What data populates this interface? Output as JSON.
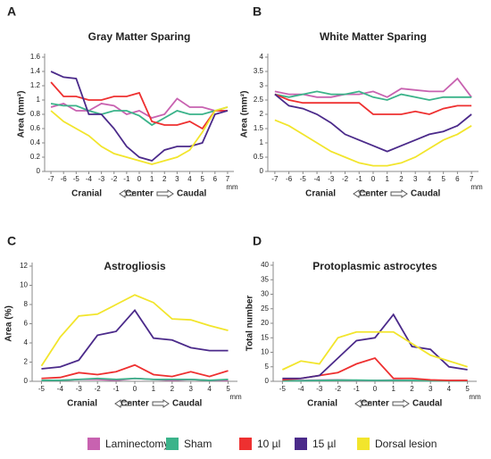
{
  "chart_data": [
    {
      "type": "line",
      "letter": "A",
      "title": "Gray Matter Sparing",
      "ylabel": "Area (mm²)",
      "xlabel": "mm",
      "notes": [
        "Cranial",
        "Center",
        "Caudal"
      ],
      "x": [
        -7,
        -6,
        -5,
        -4,
        -3,
        -2,
        -1,
        0,
        1,
        2,
        3,
        4,
        5,
        6,
        7
      ],
      "xlim": [
        -7.5,
        7.5
      ],
      "xticks": [
        -7,
        -6,
        -5,
        -4,
        -3,
        -2,
        -1,
        0,
        1,
        2,
        3,
        4,
        5,
        6,
        7
      ],
      "ylim": [
        0,
        1.6
      ],
      "yticks": [
        0,
        0.2,
        0.4,
        0.6,
        0.8,
        1,
        1.2,
        1.4,
        1.6
      ],
      "series": [
        {
          "name": "Laminectomy",
          "color": "#c862b0",
          "values": [
            0.9,
            0.95,
            0.85,
            0.85,
            0.95,
            0.92,
            0.8,
            0.85,
            0.75,
            0.8,
            1.02,
            0.9,
            0.9,
            0.85,
            0.85
          ]
        },
        {
          "name": "Sham",
          "color": "#3bb38a",
          "values": [
            0.95,
            0.92,
            0.92,
            0.85,
            0.8,
            0.85,
            0.85,
            0.78,
            0.65,
            0.75,
            0.85,
            0.8,
            0.8,
            0.85,
            0.9
          ]
        },
        {
          "name": "10 µl",
          "color": "#ee3030",
          "values": [
            1.25,
            1.05,
            1.05,
            1.0,
            1.0,
            1.05,
            1.05,
            1.1,
            0.7,
            0.65,
            0.65,
            0.7,
            0.6,
            0.85,
            0.85
          ]
        },
        {
          "name": "15 µl",
          "color": "#4b2a8a",
          "values": [
            1.4,
            1.32,
            1.3,
            0.8,
            0.8,
            0.6,
            0.35,
            0.2,
            0.15,
            0.3,
            0.35,
            0.35,
            0.4,
            0.8,
            0.85
          ]
        },
        {
          "name": "Dorsal lesion",
          "color": "#f2e52c",
          "values": [
            0.85,
            0.7,
            0.6,
            0.5,
            0.35,
            0.25,
            0.2,
            0.15,
            0.1,
            0.15,
            0.2,
            0.3,
            0.55,
            0.85,
            0.9
          ]
        }
      ]
    },
    {
      "type": "line",
      "letter": "B",
      "title": "White Matter Sparing",
      "ylabel": "Area (mm²)",
      "xlabel": "mm",
      "notes": [
        "Cranial",
        "Center",
        "Caudal"
      ],
      "x": [
        -7,
        -6,
        -5,
        -4,
        -3,
        -2,
        -1,
        0,
        1,
        2,
        3,
        4,
        5,
        6,
        7
      ],
      "xlim": [
        -7.5,
        7.5
      ],
      "xticks": [
        -7,
        -6,
        -5,
        -4,
        -3,
        -2,
        -1,
        0,
        1,
        2,
        3,
        4,
        5,
        6,
        7
      ],
      "ylim": [
        0,
        4
      ],
      "yticks": [
        0,
        0.5,
        1,
        1.5,
        2,
        2.5,
        3,
        3.5,
        4
      ],
      "series": [
        {
          "name": "Laminectomy",
          "color": "#c862b0",
          "values": [
            2.8,
            2.7,
            2.7,
            2.6,
            2.6,
            2.7,
            2.7,
            2.8,
            2.6,
            2.9,
            2.85,
            2.8,
            2.8,
            3.25,
            2.6
          ]
        },
        {
          "name": "Sham",
          "color": "#3bb38a",
          "values": [
            2.7,
            2.6,
            2.7,
            2.8,
            2.7,
            2.7,
            2.8,
            2.6,
            2.5,
            2.7,
            2.6,
            2.5,
            2.6,
            2.6,
            2.6
          ]
        },
        {
          "name": "10 µl",
          "color": "#ee3030",
          "values": [
            2.7,
            2.5,
            2.4,
            2.4,
            2.4,
            2.4,
            2.4,
            2.0,
            2.0,
            2.0,
            2.1,
            2.0,
            2.2,
            2.3,
            2.3
          ]
        },
        {
          "name": "15 µl",
          "color": "#4b2a8a",
          "values": [
            2.7,
            2.3,
            2.2,
            2.0,
            1.7,
            1.3,
            1.1,
            0.9,
            0.7,
            0.9,
            1.1,
            1.3,
            1.4,
            1.6,
            2.0
          ]
        },
        {
          "name": "Dorsal lesion",
          "color": "#f2e52c",
          "values": [
            1.8,
            1.6,
            1.3,
            1.0,
            0.7,
            0.5,
            0.3,
            0.2,
            0.2,
            0.3,
            0.5,
            0.8,
            1.1,
            1.3,
            1.6
          ]
        }
      ]
    },
    {
      "type": "line",
      "letter": "C",
      "title": "Astrogliosis",
      "ylabel": "Area (%)",
      "xlabel": "mm",
      "notes": [
        "Cranial",
        "Center",
        "Caudal"
      ],
      "x": [
        -5,
        -4,
        -3,
        -2,
        -1,
        0,
        1,
        2,
        3,
        4,
        5
      ],
      "xlim": [
        -5.5,
        5.5
      ],
      "xticks": [
        -5,
        -4,
        -3,
        -2,
        -1,
        0,
        1,
        2,
        3,
        4,
        5
      ],
      "ylim": [
        0,
        12
      ],
      "yticks": [
        0,
        2,
        4,
        6,
        8,
        10,
        12
      ],
      "series": [
        {
          "name": "Laminectomy",
          "color": "#c862b0",
          "values": [
            0.1,
            0.1,
            0.2,
            0.2,
            0.1,
            0.3,
            0.2,
            0.1,
            0.2,
            0.1,
            0.1
          ]
        },
        {
          "name": "Sham",
          "color": "#3bb38a",
          "values": [
            0.1,
            0.1,
            0.2,
            0.3,
            0.2,
            0.3,
            0.2,
            0.2,
            0.2,
            0.1,
            0.2
          ]
        },
        {
          "name": "10 µl",
          "color": "#ee3030",
          "values": [
            0.3,
            0.4,
            0.9,
            0.7,
            1.0,
            1.7,
            0.7,
            0.5,
            1.0,
            0.5,
            1.1
          ]
        },
        {
          "name": "15 µl",
          "color": "#4b2a8a",
          "values": [
            1.3,
            1.5,
            2.2,
            4.8,
            5.2,
            7.4,
            4.5,
            4.3,
            3.5,
            3.2,
            3.2
          ]
        },
        {
          "name": "Dorsal lesion",
          "color": "#f2e52c",
          "values": [
            1.6,
            4.6,
            6.8,
            7.0,
            8.0,
            9.0,
            8.2,
            6.5,
            6.4,
            5.8,
            5.3
          ]
        }
      ]
    },
    {
      "type": "line",
      "letter": "D",
      "title": "Protoplasmic astrocytes",
      "ylabel": "Total number",
      "xlabel": "mm",
      "notes": [
        "Cranial",
        "Center",
        "Caudal"
      ],
      "x": [
        -5,
        -4,
        -3,
        -2,
        -1,
        0,
        1,
        2,
        3,
        4,
        5
      ],
      "xlim": [
        -5.5,
        5.5
      ],
      "xticks": [
        -5,
        -4,
        -3,
        -2,
        -1,
        0,
        1,
        2,
        3,
        4,
        5
      ],
      "ylim": [
        0,
        40
      ],
      "yticks": [
        0,
        5,
        10,
        15,
        20,
        25,
        30,
        35,
        40
      ],
      "series": [
        {
          "name": "Laminectomy",
          "color": "#c862b0",
          "values": [
            0.3,
            0.3,
            0.4,
            0.5,
            0.3,
            0.3,
            0.4,
            0.3,
            0.3,
            0.3,
            0.3
          ]
        },
        {
          "name": "Sham",
          "color": "#3bb38a",
          "values": [
            0.2,
            0.2,
            0.3,
            0.4,
            0.4,
            0.3,
            0.3,
            0.3,
            0.2,
            0.2,
            0.2
          ]
        },
        {
          "name": "10 µl",
          "color": "#ee3030",
          "values": [
            0.5,
            1,
            2,
            3,
            6,
            8,
            1,
            1,
            0.5,
            0.3,
            0.3
          ]
        },
        {
          "name": "15 µl",
          "color": "#4b2a8a",
          "values": [
            1,
            1,
            2,
            8,
            14,
            15,
            23,
            12,
            11,
            5,
            4
          ]
        },
        {
          "name": "Dorsal lesion",
          "color": "#f2e52c",
          "values": [
            4,
            7,
            6,
            15,
            17,
            17,
            17,
            13,
            9,
            7,
            5
          ]
        }
      ]
    }
  ]
}
